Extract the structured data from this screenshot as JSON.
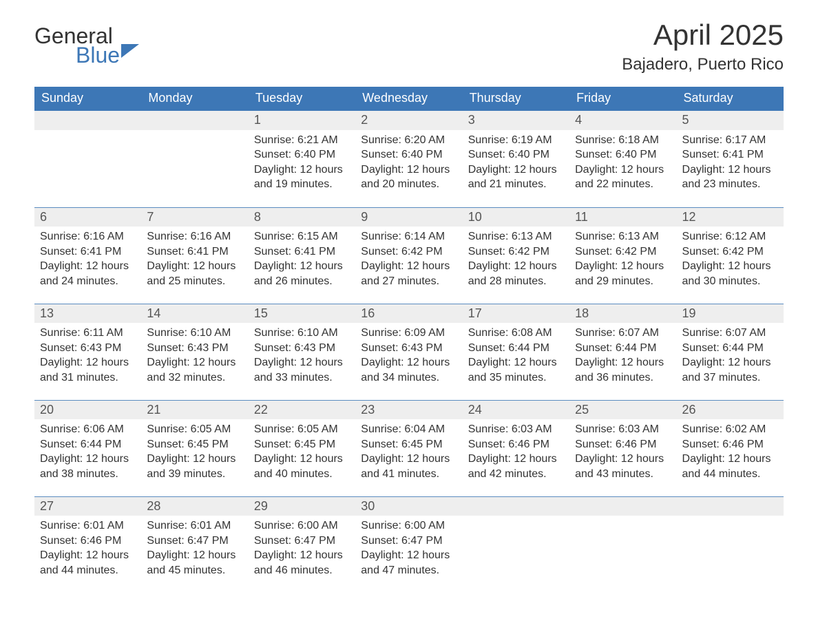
{
  "brand": {
    "line1": "General",
    "line2": "Blue"
  },
  "title": "April 2025",
  "location": "Bajadero, Puerto Rico",
  "colors": {
    "header_bg": "#3d77b6",
    "header_text": "#ffffff",
    "daynum_bg": "#eeeeee",
    "daynum_text": "#555555",
    "body_text": "#333333",
    "rule": "#5a8bc0",
    "page_bg": "#ffffff"
  },
  "typography": {
    "title_fontsize": 42,
    "subtitle_fontsize": 24,
    "header_fontsize": 18,
    "daynum_fontsize": 18,
    "body_fontsize": 16,
    "font_family": "Segoe UI"
  },
  "layout": {
    "columns": 7,
    "rows": 5,
    "leading_blanks": 2,
    "trailing_blanks": 3
  },
  "weekday_headers": [
    "Sunday",
    "Monday",
    "Tuesday",
    "Wednesday",
    "Thursday",
    "Friday",
    "Saturday"
  ],
  "days": [
    {
      "n": 1,
      "sunrise": "6:21 AM",
      "sunset": "6:40 PM",
      "daylight": "12 hours and 19 minutes."
    },
    {
      "n": 2,
      "sunrise": "6:20 AM",
      "sunset": "6:40 PM",
      "daylight": "12 hours and 20 minutes."
    },
    {
      "n": 3,
      "sunrise": "6:19 AM",
      "sunset": "6:40 PM",
      "daylight": "12 hours and 21 minutes."
    },
    {
      "n": 4,
      "sunrise": "6:18 AM",
      "sunset": "6:40 PM",
      "daylight": "12 hours and 22 minutes."
    },
    {
      "n": 5,
      "sunrise": "6:17 AM",
      "sunset": "6:41 PM",
      "daylight": "12 hours and 23 minutes."
    },
    {
      "n": 6,
      "sunrise": "6:16 AM",
      "sunset": "6:41 PM",
      "daylight": "12 hours and 24 minutes."
    },
    {
      "n": 7,
      "sunrise": "6:16 AM",
      "sunset": "6:41 PM",
      "daylight": "12 hours and 25 minutes."
    },
    {
      "n": 8,
      "sunrise": "6:15 AM",
      "sunset": "6:41 PM",
      "daylight": "12 hours and 26 minutes."
    },
    {
      "n": 9,
      "sunrise": "6:14 AM",
      "sunset": "6:42 PM",
      "daylight": "12 hours and 27 minutes."
    },
    {
      "n": 10,
      "sunrise": "6:13 AM",
      "sunset": "6:42 PM",
      "daylight": "12 hours and 28 minutes."
    },
    {
      "n": 11,
      "sunrise": "6:13 AM",
      "sunset": "6:42 PM",
      "daylight": "12 hours and 29 minutes."
    },
    {
      "n": 12,
      "sunrise": "6:12 AM",
      "sunset": "6:42 PM",
      "daylight": "12 hours and 30 minutes."
    },
    {
      "n": 13,
      "sunrise": "6:11 AM",
      "sunset": "6:43 PM",
      "daylight": "12 hours and 31 minutes."
    },
    {
      "n": 14,
      "sunrise": "6:10 AM",
      "sunset": "6:43 PM",
      "daylight": "12 hours and 32 minutes."
    },
    {
      "n": 15,
      "sunrise": "6:10 AM",
      "sunset": "6:43 PM",
      "daylight": "12 hours and 33 minutes."
    },
    {
      "n": 16,
      "sunrise": "6:09 AM",
      "sunset": "6:43 PM",
      "daylight": "12 hours and 34 minutes."
    },
    {
      "n": 17,
      "sunrise": "6:08 AM",
      "sunset": "6:44 PM",
      "daylight": "12 hours and 35 minutes."
    },
    {
      "n": 18,
      "sunrise": "6:07 AM",
      "sunset": "6:44 PM",
      "daylight": "12 hours and 36 minutes."
    },
    {
      "n": 19,
      "sunrise": "6:07 AM",
      "sunset": "6:44 PM",
      "daylight": "12 hours and 37 minutes."
    },
    {
      "n": 20,
      "sunrise": "6:06 AM",
      "sunset": "6:44 PM",
      "daylight": "12 hours and 38 minutes."
    },
    {
      "n": 21,
      "sunrise": "6:05 AM",
      "sunset": "6:45 PM",
      "daylight": "12 hours and 39 minutes."
    },
    {
      "n": 22,
      "sunrise": "6:05 AM",
      "sunset": "6:45 PM",
      "daylight": "12 hours and 40 minutes."
    },
    {
      "n": 23,
      "sunrise": "6:04 AM",
      "sunset": "6:45 PM",
      "daylight": "12 hours and 41 minutes."
    },
    {
      "n": 24,
      "sunrise": "6:03 AM",
      "sunset": "6:46 PM",
      "daylight": "12 hours and 42 minutes."
    },
    {
      "n": 25,
      "sunrise": "6:03 AM",
      "sunset": "6:46 PM",
      "daylight": "12 hours and 43 minutes."
    },
    {
      "n": 26,
      "sunrise": "6:02 AM",
      "sunset": "6:46 PM",
      "daylight": "12 hours and 44 minutes."
    },
    {
      "n": 27,
      "sunrise": "6:01 AM",
      "sunset": "6:46 PM",
      "daylight": "12 hours and 44 minutes."
    },
    {
      "n": 28,
      "sunrise": "6:01 AM",
      "sunset": "6:47 PM",
      "daylight": "12 hours and 45 minutes."
    },
    {
      "n": 29,
      "sunrise": "6:00 AM",
      "sunset": "6:47 PM",
      "daylight": "12 hours and 46 minutes."
    },
    {
      "n": 30,
      "sunrise": "6:00 AM",
      "sunset": "6:47 PM",
      "daylight": "12 hours and 47 minutes."
    }
  ],
  "labels": {
    "sunrise": "Sunrise: ",
    "sunset": "Sunset: ",
    "daylight": "Daylight: "
  }
}
